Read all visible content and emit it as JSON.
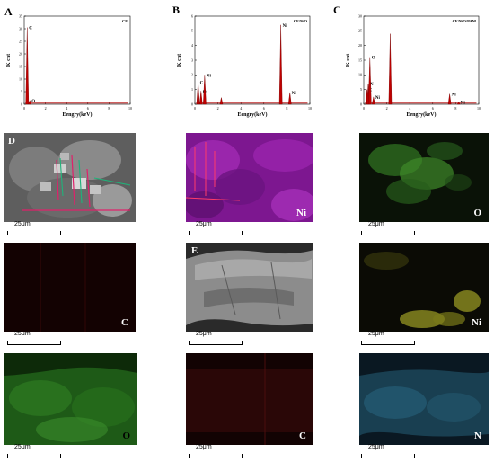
{
  "panels": {
    "A": "A",
    "B": "B",
    "C": "C",
    "D": "D",
    "E": "E"
  },
  "chart_data": [
    {
      "type": "line",
      "legend": "CF",
      "xlabel": "Eengry(keV)",
      "ylabel": "K cnt",
      "xlim": [
        0,
        10
      ],
      "ylim": [
        0,
        35
      ],
      "xticks": [
        "0",
        "2",
        "4",
        "6",
        "8",
        "10"
      ],
      "yticks": [
        "0",
        "5",
        "10",
        "15",
        "20",
        "25",
        "30",
        "35"
      ],
      "peaks": [
        {
          "label": "C",
          "x": 0.28,
          "y": 30.5
        },
        {
          "label": "O",
          "x": 0.53,
          "y": 1.5
        }
      ]
    },
    {
      "type": "line",
      "legend": "CF/NiO",
      "xlabel": "Eengry(keV)",
      "ylabel": "K cnt",
      "xlim": [
        0,
        10
      ],
      "ylim": [
        0,
        6
      ],
      "xticks": [
        "0",
        "2",
        "4",
        "6",
        "8",
        "10"
      ],
      "yticks": [
        "0",
        "1",
        "2",
        "3",
        "4",
        "5",
        "6"
      ],
      "peaks": [
        {
          "label": "C",
          "x": 0.28,
          "y": 1.5
        },
        {
          "label": "O",
          "x": 0.53,
          "y": 0.9
        },
        {
          "label": "Ni",
          "x": 0.85,
          "y": 2.0
        },
        {
          "label": "",
          "x": 2.3,
          "y": 0.45
        },
        {
          "label": "Ni",
          "x": 7.47,
          "y": 5.4
        },
        {
          "label": "Ni",
          "x": 8.26,
          "y": 0.8
        }
      ]
    },
    {
      "type": "line",
      "legend": "CF/NiO/PAM",
      "xlabel": "Eengry(keV)",
      "ylabel": "K cnt",
      "xlim": [
        0,
        10
      ],
      "ylim": [
        0,
        30
      ],
      "xticks": [
        "0",
        "2",
        "4",
        "6",
        "8",
        "10"
      ],
      "yticks": [
        "0",
        "5",
        "10",
        "15",
        "20",
        "25",
        "30"
      ],
      "peaks": [
        {
          "label": "C",
          "x": 0.28,
          "y": 5
        },
        {
          "label": "N",
          "x": 0.39,
          "y": 7
        },
        {
          "label": "O",
          "x": 0.53,
          "y": 16
        },
        {
          "label": "Ni",
          "x": 0.85,
          "y": 2.5
        },
        {
          "label": "",
          "x": 2.3,
          "y": 24
        },
        {
          "label": "Ni",
          "x": 7.47,
          "y": 3.5
        },
        {
          "label": "Ni",
          "x": 8.26,
          "y": 0.8
        }
      ]
    }
  ],
  "maps": [
    {
      "id": "D-sem",
      "letter": "D",
      "label": "",
      "base": "#6d6d6d"
    },
    {
      "id": "ni-1",
      "label": "Ni",
      "base": "#8a1f9a",
      "labelColor": "#ffffff"
    },
    {
      "id": "o-1",
      "label": "O",
      "base": "#0b1408",
      "labelColor": "#ffffff"
    },
    {
      "id": "c-1",
      "label": "C",
      "base": "#080202",
      "labelColor": "#ffffff"
    },
    {
      "id": "E-sem",
      "letter": "E",
      "label": "",
      "base": "#8a8a8a"
    },
    {
      "id": "ni-2",
      "label": "Ni",
      "base": "#0a0a04",
      "labelColor": "#ffffff"
    },
    {
      "id": "o-2",
      "label": "O",
      "base": "#1d5a16",
      "labelColor": "#000000"
    },
    {
      "id": "c-2",
      "label": "C",
      "base": "#140404",
      "labelColor": "#ffffff"
    },
    {
      "id": "n-2",
      "label": "N",
      "base": "#0a1a24",
      "labelColor": "#ffffff"
    }
  ],
  "scalebar": "25μm"
}
